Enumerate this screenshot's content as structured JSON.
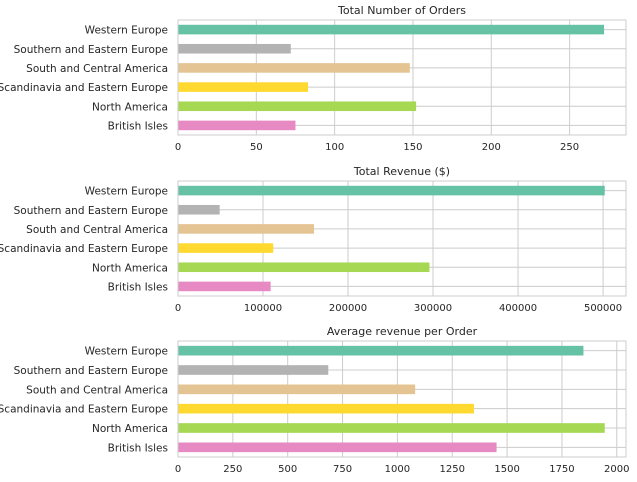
{
  "chart_data": [
    {
      "type": "bar",
      "orientation": "horizontal",
      "title": "Total Number of Orders",
      "xlabel": "",
      "ylabel": "",
      "categories": [
        "British Isles",
        "North America",
        "Scandinavia and Eastern Europe",
        "South and Central America",
        "Southern and Eastern Europe",
        "Western Europe"
      ],
      "values": [
        75,
        152,
        83,
        148,
        72,
        272
      ],
      "colors": [
        "#e78ac3",
        "#a6d854",
        "#ffd92f",
        "#e5c494",
        "#b3b3b3",
        "#66c2a5"
      ],
      "xlim": [
        0,
        286
      ],
      "xticks": [
        0,
        50,
        100,
        150,
        200,
        250
      ],
      "grid": true
    },
    {
      "type": "bar",
      "orientation": "horizontal",
      "title": "Total Revenue ($)",
      "xlabel": "",
      "ylabel": "",
      "categories": [
        "British Isles",
        "North America",
        "Scandinavia and Eastern Europe",
        "South and Central America",
        "Southern and Eastern Europe",
        "Western Europe"
      ],
      "values": [
        108950,
        295800,
        112000,
        160000,
        49000,
        502000
      ],
      "colors": [
        "#e78ac3",
        "#a6d854",
        "#ffd92f",
        "#e5c494",
        "#b3b3b3",
        "#66c2a5"
      ],
      "xlim": [
        0,
        527000
      ],
      "xticks": [
        0,
        100000,
        200000,
        300000,
        400000,
        500000
      ],
      "grid": true
    },
    {
      "type": "bar",
      "orientation": "horizontal",
      "title": "Average revenue per Order",
      "xlabel": "",
      "ylabel": "",
      "categories": [
        "British Isles",
        "North America",
        "Scandinavia and Eastern Europe",
        "South and Central America",
        "Southern and Eastern Europe",
        "Western Europe"
      ],
      "values": [
        1452,
        1945,
        1349,
        1081,
        685,
        1848
      ],
      "colors": [
        "#e78ac3",
        "#a6d854",
        "#ffd92f",
        "#e5c494",
        "#b3b3b3",
        "#66c2a5"
      ],
      "xlim": [
        0,
        2042
      ],
      "xticks": [
        0,
        250,
        500,
        750,
        1000,
        1250,
        1500,
        1750,
        2000
      ],
      "grid": true
    }
  ]
}
